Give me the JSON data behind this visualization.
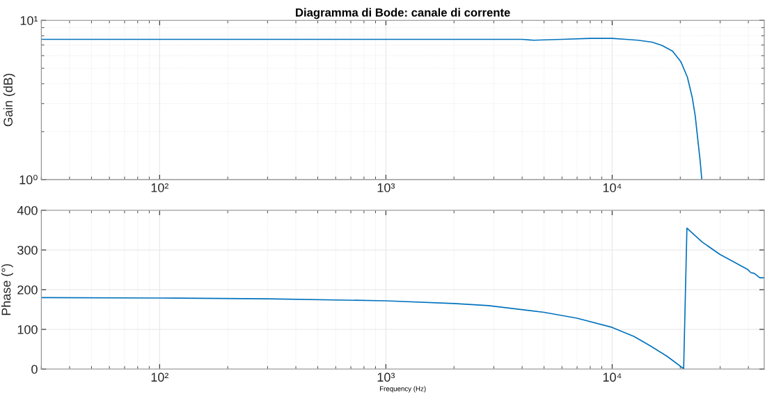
{
  "chart_data": [
    {
      "type": "line",
      "title": "Diagramma di Bode: canale di corrente",
      "ylabel": "Gain (dB)",
      "log": "xy",
      "grid": true,
      "xlim": [
        30,
        47000
      ],
      "xticks": [
        {
          "value": 100,
          "label": "10²"
        },
        {
          "value": 1000,
          "label": "10³"
        },
        {
          "value": 10000,
          "label": "10⁴"
        }
      ],
      "ylim": [
        1,
        10
      ],
      "yticks": [
        {
          "value": 1,
          "label": "10⁰"
        },
        {
          "value": 10,
          "label": "10¹"
        }
      ],
      "series": [
        {
          "color": "#0072bd",
          "x": [
            30,
            100,
            300,
            1000,
            3000,
            4000,
            4500,
            6000,
            8000,
            10000,
            11500,
            13000,
            15000,
            16600,
            18500,
            20100,
            21500,
            22600,
            23300,
            23900,
            24500,
            24900
          ],
          "values": [
            7.6,
            7.6,
            7.6,
            7.6,
            7.6,
            7.6,
            7.5,
            7.6,
            7.7,
            7.7,
            7.6,
            7.5,
            7.3,
            6.96,
            6.4,
            5.51,
            4.4,
            3.27,
            2.5,
            1.79,
            1.3,
            1.0
          ]
        }
      ]
    },
    {
      "type": "line",
      "xlabel": "Frequency (Hz)",
      "ylabel": "Phase (°)",
      "log": "x",
      "grid": true,
      "xlim": [
        30,
        47000
      ],
      "xticks": [
        {
          "value": 100,
          "label": "10²"
        },
        {
          "value": 1000,
          "label": "10³"
        },
        {
          "value": 10000,
          "label": "10⁴"
        }
      ],
      "ylim": [
        0,
        400
      ],
      "yticks": [
        0,
        100,
        200,
        300,
        400
      ],
      "series": [
        {
          "color": "#0072bd",
          "x": [
            30,
            100,
            300,
            1000,
            2000,
            2840,
            5000,
            7000,
            10000,
            12500,
            14800,
            17500,
            20700,
            21400,
            25000,
            29900,
            35000,
            39700,
            41000,
            42500,
            44900,
            47000
          ],
          "values": [
            180,
            179,
            177,
            172,
            165,
            160,
            143,
            128,
            105,
            82,
            58,
            32,
            1,
            355,
            320,
            289,
            268,
            251,
            243,
            241,
            230,
            230
          ]
        }
      ]
    }
  ]
}
